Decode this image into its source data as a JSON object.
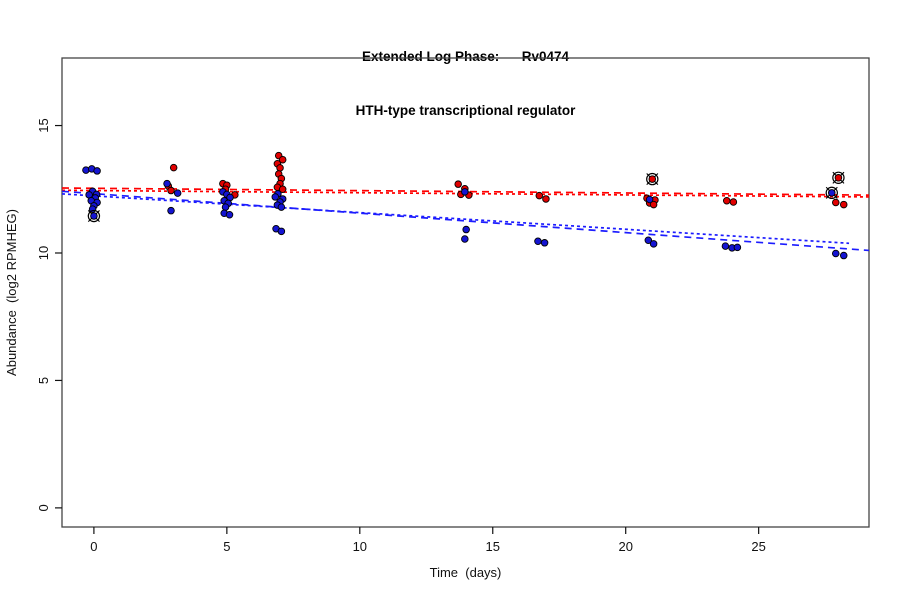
{
  "title_block": {
    "title": "Extended Log Phase:      Rv0474",
    "subtitle": "HTH-type transcriptional regulator"
  },
  "chart_data": {
    "type": "scatter",
    "title": "Extended Log Phase:      Rv0474",
    "subtitle": "HTH-type transcriptional regulator",
    "xlabel": "Time  (days)",
    "ylabel": "Abundance  (log2 RPMHEG)",
    "xlim": [
      -1.2,
      29.15
    ],
    "ylim": [
      -0.75,
      17.65
    ],
    "xticks": [
      0,
      5,
      10,
      15,
      20,
      25
    ],
    "yticks": [
      0,
      5,
      10,
      15
    ],
    "grid": false,
    "legend_position": "none",
    "box_color": "#444444",
    "series": [
      {
        "name": "red",
        "color": "#e10000",
        "points": [
          [
            3.0,
            13.35
          ],
          [
            2.8,
            12.62
          ],
          [
            2.9,
            12.45
          ],
          [
            4.85,
            12.72
          ],
          [
            5.0,
            12.66
          ],
          [
            4.95,
            12.5
          ],
          [
            5.3,
            12.28
          ],
          [
            6.95,
            13.82
          ],
          [
            7.1,
            13.66
          ],
          [
            6.9,
            13.5
          ],
          [
            7.0,
            13.34
          ],
          [
            6.95,
            13.1
          ],
          [
            7.05,
            12.92
          ],
          [
            7.0,
            12.72
          ],
          [
            6.9,
            12.58
          ],
          [
            7.1,
            12.5
          ],
          [
            13.7,
            12.7
          ],
          [
            13.95,
            12.52
          ],
          [
            13.8,
            12.3
          ],
          [
            14.1,
            12.27
          ],
          [
            16.75,
            12.25
          ],
          [
            17.0,
            12.12
          ],
          [
            20.8,
            12.15
          ],
          [
            21.1,
            12.08
          ],
          [
            20.9,
            11.96
          ],
          [
            21.05,
            11.9
          ],
          [
            23.8,
            12.05
          ],
          [
            24.05,
            12.0
          ],
          [
            27.9,
            11.98
          ],
          [
            28.2,
            11.9
          ]
        ]
      },
      {
        "name": "blue",
        "color": "#1414d2",
        "points": [
          [
            -0.3,
            13.25
          ],
          [
            -0.08,
            13.3
          ],
          [
            0.12,
            13.22
          ],
          [
            -0.05,
            12.42
          ],
          [
            0.1,
            12.3
          ],
          [
            -0.18,
            12.28
          ],
          [
            0.05,
            12.16
          ],
          [
            -0.1,
            12.05
          ],
          [
            0.12,
            11.98
          ],
          [
            0.0,
            11.85
          ],
          [
            -0.05,
            11.72
          ],
          [
            2.75,
            12.72
          ],
          [
            3.15,
            12.35
          ],
          [
            2.9,
            11.66
          ],
          [
            4.85,
            12.4
          ],
          [
            5.0,
            12.3
          ],
          [
            5.12,
            12.18
          ],
          [
            4.9,
            12.05
          ],
          [
            5.05,
            11.95
          ],
          [
            4.95,
            11.8
          ],
          [
            4.9,
            11.56
          ],
          [
            5.1,
            11.5
          ],
          [
            6.92,
            12.32
          ],
          [
            6.82,
            12.2
          ],
          [
            7.1,
            12.12
          ],
          [
            7.0,
            12.0
          ],
          [
            6.9,
            11.88
          ],
          [
            7.05,
            11.8
          ],
          [
            6.85,
            10.95
          ],
          [
            7.05,
            10.85
          ],
          [
            13.95,
            12.4
          ],
          [
            14.0,
            10.92
          ],
          [
            13.95,
            10.55
          ],
          [
            16.7,
            10.46
          ],
          [
            16.95,
            10.4
          ],
          [
            20.9,
            12.1
          ],
          [
            20.85,
            10.5
          ],
          [
            21.05,
            10.36
          ],
          [
            23.75,
            10.27
          ],
          [
            24.0,
            10.2
          ],
          [
            24.2,
            10.22
          ],
          [
            27.9,
            9.98
          ],
          [
            28.2,
            9.9
          ]
        ]
      }
    ],
    "flagged_points": [
      {
        "series": "blue",
        "x": 0.0,
        "y": 11.45
      },
      {
        "series": "red",
        "x": 21.0,
        "y": 12.9
      },
      {
        "series": "blue",
        "x": 27.75,
        "y": 12.36
      },
      {
        "series": "red",
        "x": 28.0,
        "y": 12.95
      }
    ],
    "trend_lines": [
      {
        "name": "red-dashed",
        "color": "#ff0000",
        "dash": [
          7,
          5
        ],
        "x": [
          -1.2,
          29.15
        ],
        "y": [
          12.55,
          12.27
        ]
      },
      {
        "name": "red-dotted",
        "color": "#ff0000",
        "dash": [
          3,
          3
        ],
        "x": [
          -1.2,
          29.15
        ],
        "y": [
          12.46,
          12.2
        ]
      },
      {
        "name": "blue-dashed",
        "color": "#1c1cff",
        "dash": [
          7,
          5
        ],
        "x": [
          -1.2,
          29.15
        ],
        "y": [
          12.42,
          10.1
        ]
      },
      {
        "name": "blue-dotted",
        "color": "#1c1cff",
        "dash": [
          3,
          3
        ],
        "x": [
          -1.2,
          28.4
        ],
        "y": [
          12.32,
          10.38
        ]
      }
    ]
  }
}
